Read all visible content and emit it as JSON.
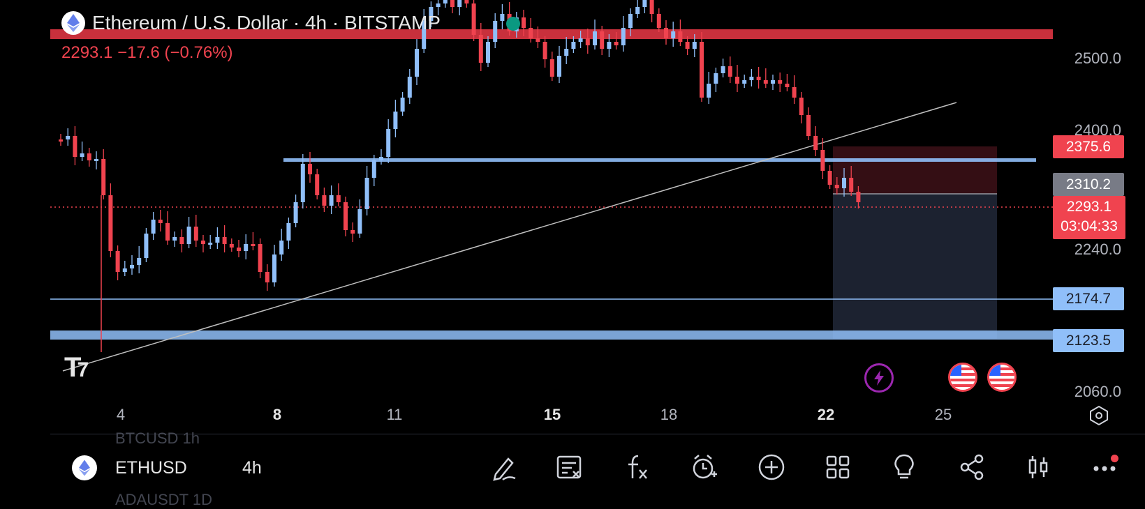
{
  "header": {
    "title": "Ethereum / U.S. Dollar · 4h · BITSTAMP",
    "price_change": "2293.1  −17.6 (−0.76%)"
  },
  "price_axis": {
    "labels": [
      "2500.0",
      "2400.0",
      "2240.0",
      "2060.0"
    ],
    "tags": {
      "upper_level": "2375.6",
      "entry": "2310.2",
      "current_price": "2293.1",
      "countdown": "03:04:33",
      "support_1": "2174.7",
      "support_2": "2123.5"
    }
  },
  "time_axis": {
    "labels": [
      "4",
      "8",
      "11",
      "15",
      "18",
      "22",
      "25"
    ]
  },
  "toolbar": {
    "ghost_above": "BTCUSD   1h",
    "ghost_below": "ADAUSDT   1D",
    "symbol": "ETHUSD",
    "interval": "4h",
    "tools": [
      "draw-icon",
      "script-icon",
      "indicator-fx-icon",
      "alert-icon",
      "add-icon",
      "layouts-icon",
      "ideas-icon",
      "share-icon",
      "candle-style-icon",
      "more-icon"
    ]
  },
  "colors": {
    "bull": "#90bff9",
    "bear": "#f0434f",
    "background": "#000000"
  }
}
